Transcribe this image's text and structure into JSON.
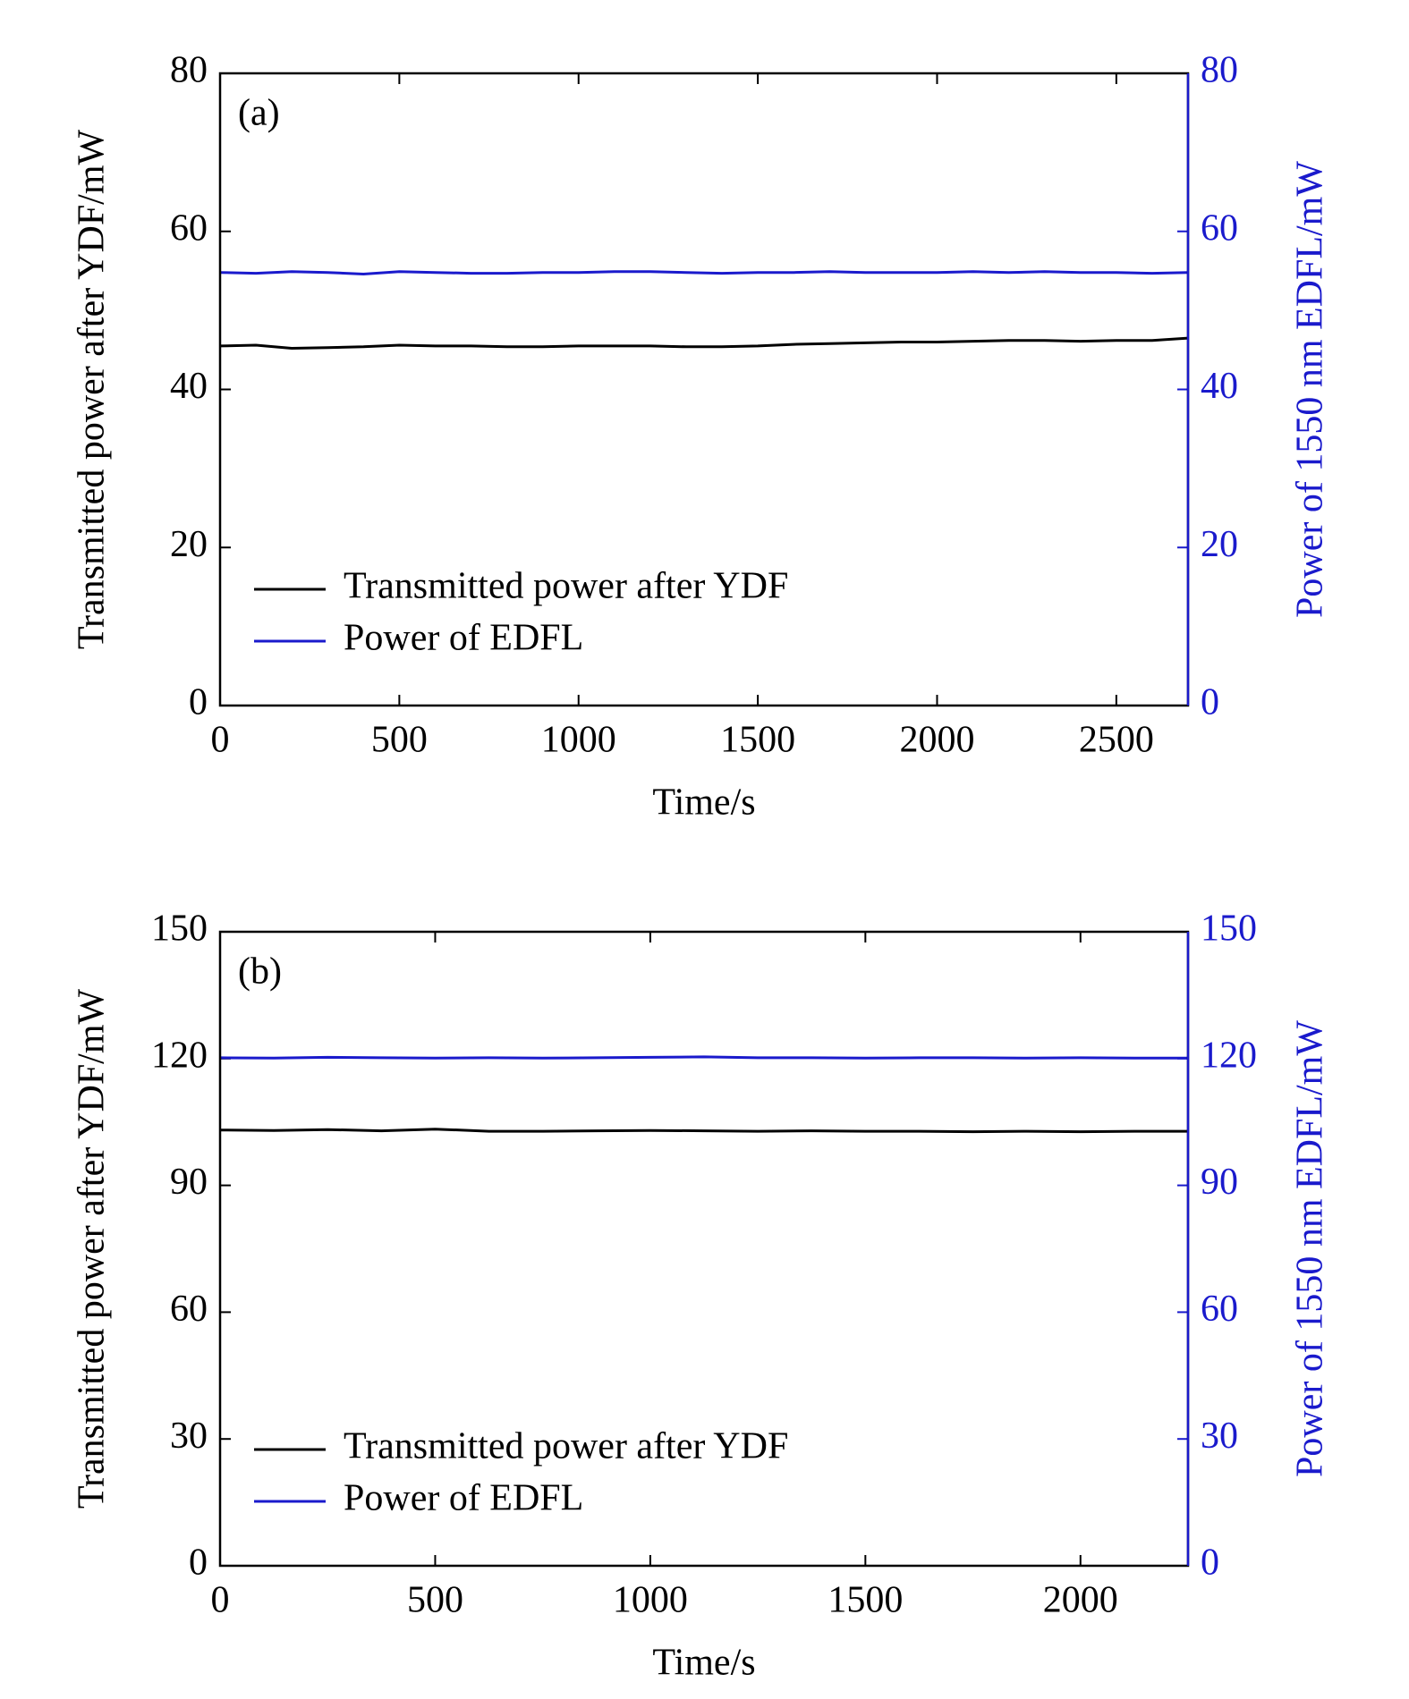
{
  "chart_data": [
    {
      "type": "line",
      "annotation": "(a)",
      "xlabel": "Time/s",
      "ylabel": "Transmitted power after YDF/mW",
      "y2label": "Power of 1550 nm EDFL/mW",
      "x": [
        0,
        100,
        200,
        300,
        400,
        500,
        600,
        700,
        800,
        900,
        1000,
        1100,
        1200,
        1300,
        1400,
        1500,
        1600,
        1700,
        1800,
        1900,
        2000,
        2100,
        2200,
        2300,
        2400,
        2500,
        2600,
        2700
      ],
      "series": [
        {
          "name": "Transmitted power after YDF",
          "color": "#000000",
          "values": [
            45.5,
            45.6,
            45.2,
            45.3,
            45.4,
            45.6,
            45.5,
            45.5,
            45.4,
            45.4,
            45.5,
            45.5,
            45.5,
            45.4,
            45.4,
            45.5,
            45.7,
            45.8,
            45.9,
            46.0,
            46.0,
            46.1,
            46.2,
            46.2,
            46.1,
            46.2,
            46.2,
            46.5
          ]
        },
        {
          "name": "Power of EDFL",
          "color": "#1a1acc",
          "axis": "y2",
          "values": [
            54.8,
            54.7,
            54.9,
            54.8,
            54.6,
            54.9,
            54.8,
            54.7,
            54.7,
            54.8,
            54.8,
            54.9,
            54.9,
            54.8,
            54.7,
            54.8,
            54.8,
            54.9,
            54.8,
            54.8,
            54.8,
            54.9,
            54.8,
            54.9,
            54.8,
            54.8,
            54.7,
            54.8
          ]
        }
      ],
      "xlim": [
        0,
        2700
      ],
      "xticks": [
        0,
        500,
        1000,
        1500,
        2000,
        2500
      ],
      "ylim": [
        0,
        80
      ],
      "yticks": [
        0,
        20,
        40,
        60,
        80
      ],
      "y2lim": [
        0,
        80
      ],
      "y2ticks": [
        0,
        20,
        40,
        60,
        80
      ],
      "legend": "lower left"
    },
    {
      "type": "line",
      "annotation": "(b)",
      "xlabel": "Time/s",
      "ylabel": "Transmitted power after YDF/mW",
      "y2label": "Power of 1550 nm EDFL/mW",
      "x": [
        0,
        125,
        250,
        375,
        500,
        625,
        750,
        875,
        1000,
        1125,
        1250,
        1375,
        1500,
        1625,
        1750,
        1875,
        2000,
        2125,
        2250
      ],
      "series": [
        {
          "name": "Transmitted power after YDF",
          "color": "#000000",
          "values": [
            103.1,
            103.0,
            103.2,
            102.9,
            103.3,
            102.8,
            102.8,
            102.9,
            103.0,
            102.9,
            102.8,
            102.9,
            102.8,
            102.8,
            102.7,
            102.8,
            102.7,
            102.8,
            102.8
          ]
        },
        {
          "name": "Power of EDFL",
          "color": "#1a1acc",
          "axis": "y2",
          "values": [
            120.2,
            120.1,
            120.3,
            120.2,
            120.1,
            120.2,
            120.1,
            120.2,
            120.3,
            120.4,
            120.2,
            120.2,
            120.1,
            120.2,
            120.2,
            120.1,
            120.2,
            120.1,
            120.1
          ]
        }
      ],
      "xlim": [
        0,
        2250
      ],
      "xticks": [
        0,
        500,
        1000,
        1500,
        2000
      ],
      "ylim": [
        0,
        150
      ],
      "yticks": [
        0,
        30,
        60,
        90,
        120,
        150
      ],
      "y2lim": [
        0,
        150
      ],
      "y2ticks": [
        0,
        30,
        60,
        90,
        120,
        150
      ],
      "legend": "lower left"
    }
  ]
}
